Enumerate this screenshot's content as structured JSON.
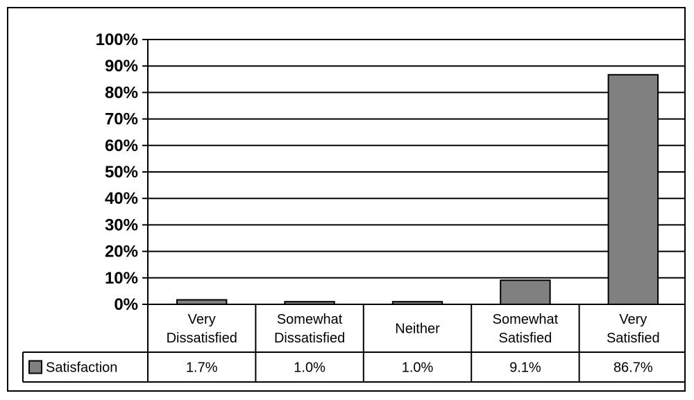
{
  "chart_data": {
    "type": "bar",
    "categories": [
      [
        "Very",
        "Dissatisfied"
      ],
      [
        "Somewhat",
        "Dissatisfied"
      ],
      [
        "Neither"
      ],
      [
        "Somewhat",
        "Satisfied"
      ],
      [
        "Very",
        "Satisfied"
      ]
    ],
    "series": [
      {
        "name": "Satisfaction",
        "values": [
          1.7,
          1.0,
          1.0,
          9.1,
          86.7
        ],
        "labels": [
          "1.7%",
          "1.0%",
          "1.0%",
          "9.1%",
          "86.7%"
        ],
        "color": "#808080"
      }
    ],
    "ylim": [
      0,
      100
    ],
    "yticks": [
      "0%",
      "10%",
      "20%",
      "30%",
      "40%",
      "50%",
      "60%",
      "70%",
      "80%",
      "90%",
      "100%"
    ],
    "grid": true,
    "legend": "data-table",
    "title": "",
    "xlabel": "",
    "ylabel": ""
  }
}
